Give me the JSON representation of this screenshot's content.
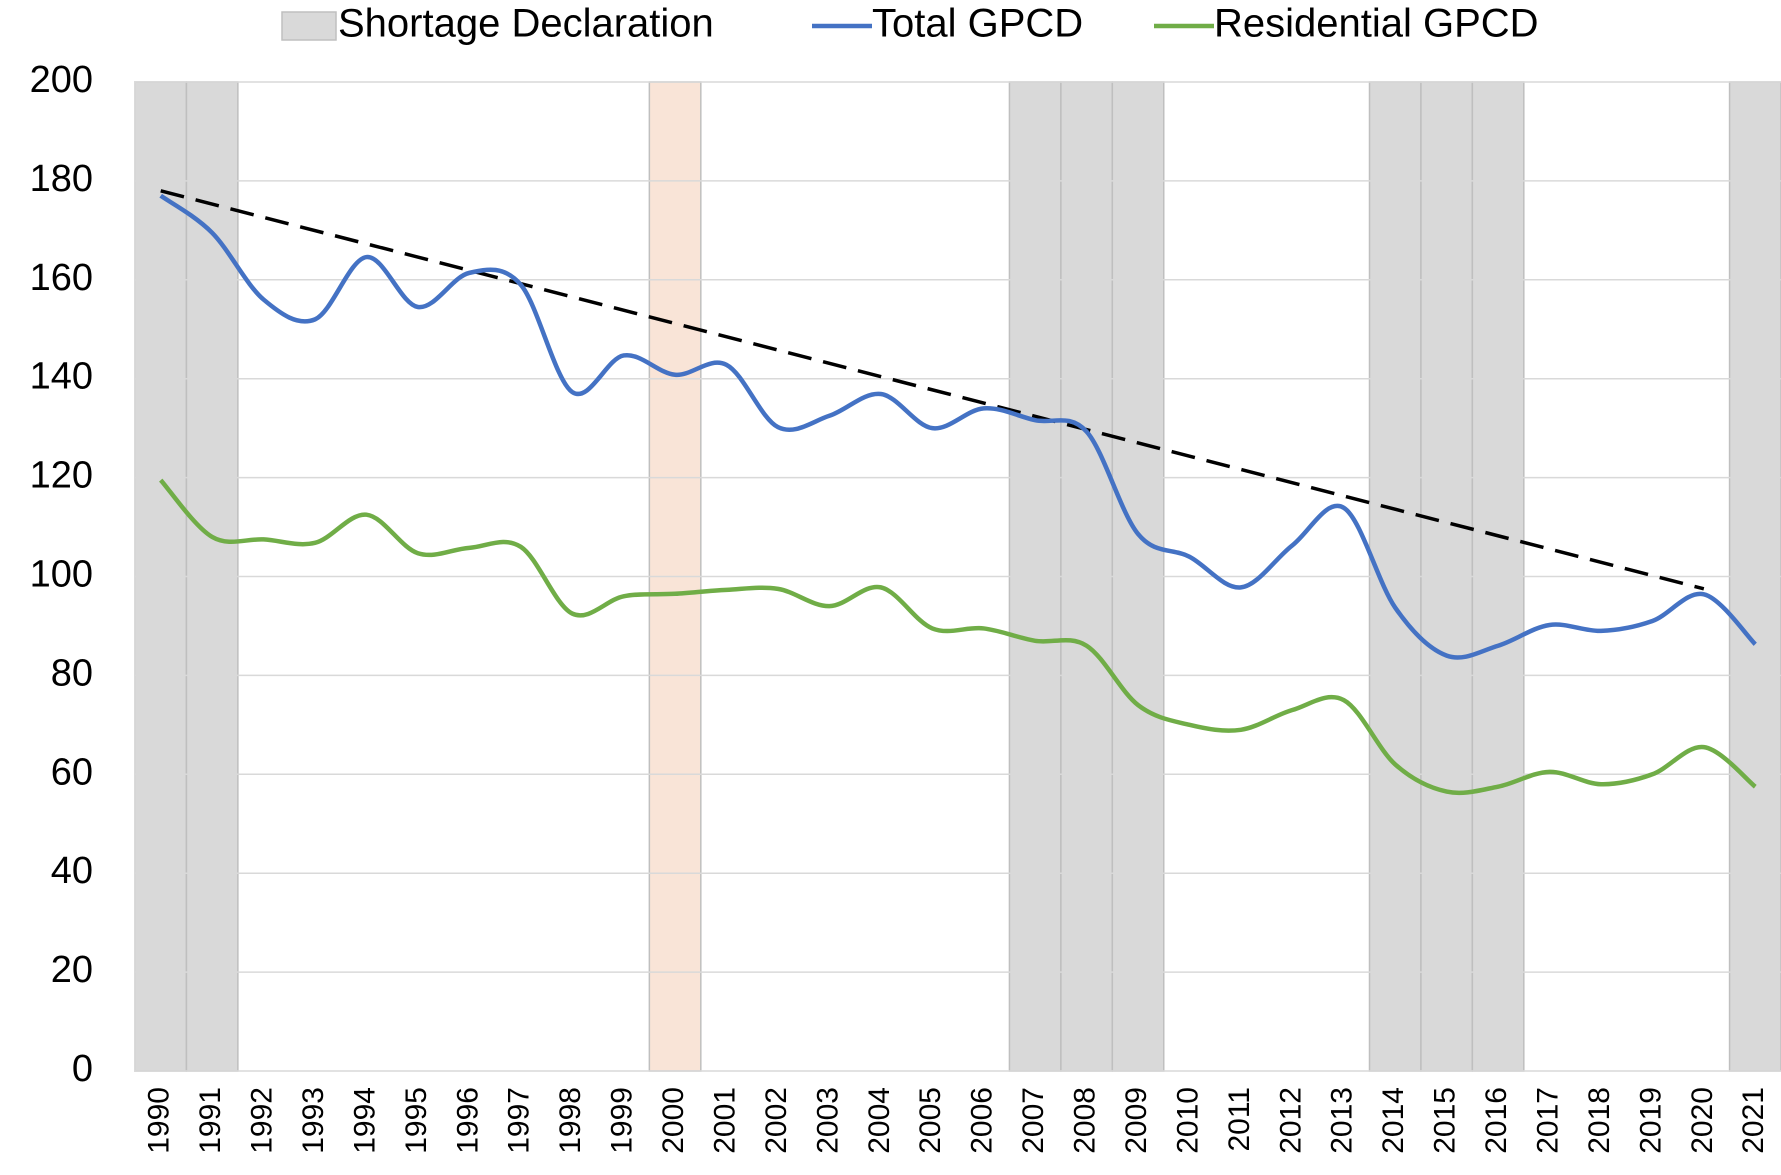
{
  "chart_data": {
    "type": "line",
    "categories": [
      "1990",
      "1991",
      "1992",
      "1993",
      "1994",
      "1995",
      "1996",
      "1997",
      "1998",
      "1999",
      "2000",
      "2001",
      "2002",
      "2003",
      "2004",
      "2005",
      "2006",
      "2007",
      "2008",
      "2009",
      "2010",
      "2011",
      "2012",
      "2013",
      "2014",
      "2015",
      "2016",
      "2017",
      "2018",
      "2019",
      "2020",
      "2021"
    ],
    "bars": {
      "name": "Shortage Declaration",
      "color": "#d9d9d9",
      "values": [
        200,
        200,
        null,
        null,
        null,
        null,
        null,
        null,
        null,
        null,
        200,
        null,
        null,
        null,
        null,
        null,
        null,
        200,
        200,
        200,
        null,
        null,
        null,
        null,
        200,
        200,
        200,
        null,
        null,
        null,
        null,
        200
      ],
      "colors": [
        "#d9d9d9",
        "#d9d9d9",
        null,
        null,
        null,
        null,
        null,
        null,
        null,
        null,
        "#f9e4d7",
        null,
        null,
        null,
        null,
        null,
        null,
        "#d9d9d9",
        "#d9d9d9",
        "#d9d9d9",
        null,
        null,
        null,
        null,
        "#d9d9d9",
        "#d9d9d9",
        "#d9d9d9",
        null,
        null,
        null,
        null,
        "#d9d9d9"
      ]
    },
    "series": [
      {
        "name": "Total GPCD",
        "color": "#4472c4",
        "values": [
          177,
          169.5,
          156,
          152,
          164.6,
          154.5,
          161.4,
          159,
          137.3,
          144.7,
          140.8,
          142.8,
          130.2,
          132.5,
          136.9,
          130,
          134,
          131.6,
          129.3,
          108.6,
          104,
          97.8,
          106.3,
          113.9,
          93.7,
          84,
          86,
          90.2,
          89,
          91,
          96.4,
          86.3
        ]
      },
      {
        "name": "Residential GPCD",
        "color": "#70ad47",
        "values": [
          119.5,
          108,
          107.5,
          106.8,
          112.5,
          104.7,
          105.8,
          106,
          92.5,
          96,
          96.5,
          97.3,
          97.5,
          94,
          97.8,
          89.5,
          89.5,
          87,
          86,
          74,
          70,
          69,
          73,
          75,
          62,
          56.5,
          57.5,
          60.5,
          58,
          60,
          65.5,
          57.5
        ]
      }
    ],
    "trendline": {
      "start": {
        "category": "1990",
        "value": 178
      },
      "end": {
        "category": "2020",
        "value": 97.5
      },
      "color": "#000000"
    },
    "ylim": [
      0,
      200
    ],
    "yticks": [
      0,
      20,
      40,
      60,
      80,
      100,
      120,
      140,
      160,
      180,
      200
    ],
    "grid": true,
    "legend": "top"
  }
}
